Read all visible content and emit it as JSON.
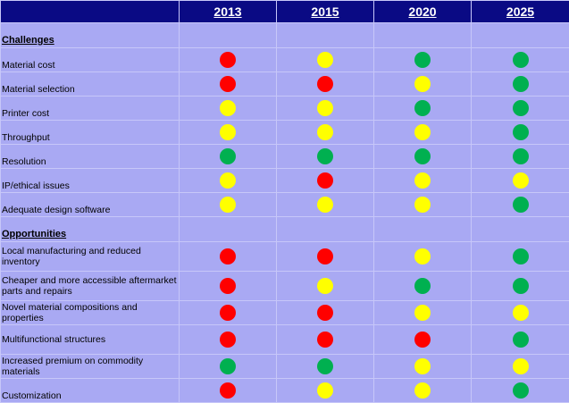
{
  "colors": {
    "red": "#ff0000",
    "yellow": "#ffff00",
    "green": "#00b050",
    "header_bg": "#0a0a84",
    "body_bg": "#a9a9f3"
  },
  "years": [
    "2013",
    "2015",
    "2020",
    "2025"
  ],
  "sections": [
    {
      "title": "Challenges",
      "rows": [
        {
          "label": "Material cost",
          "statuses": [
            "red",
            "yellow",
            "green",
            "green"
          ]
        },
        {
          "label": "Material selection",
          "statuses": [
            "red",
            "red",
            "yellow",
            "green"
          ]
        },
        {
          "label": "Printer cost",
          "statuses": [
            "yellow",
            "yellow",
            "green",
            "green"
          ]
        },
        {
          "label": "Throughput",
          "statuses": [
            "yellow",
            "yellow",
            "yellow",
            "green"
          ]
        },
        {
          "label": "Resolution",
          "statuses": [
            "green",
            "green",
            "green",
            "green"
          ]
        },
        {
          "label": "IP/ethical issues",
          "statuses": [
            "yellow",
            "red",
            "yellow",
            "yellow"
          ]
        },
        {
          "label": "Adequate design software",
          "statuses": [
            "yellow",
            "yellow",
            "yellow",
            "green"
          ]
        }
      ]
    },
    {
      "title": "Opportunities",
      "rows": [
        {
          "label": "Local manufacturing and reduced inventory",
          "statuses": [
            "red",
            "red",
            "yellow",
            "green"
          ]
        },
        {
          "label": "Cheaper and more accessible aftermarket parts and repairs",
          "statuses": [
            "red",
            "yellow",
            "green",
            "green"
          ]
        },
        {
          "label": "Novel material compositions and properties",
          "statuses": [
            "red",
            "red",
            "yellow",
            "yellow"
          ]
        },
        {
          "label": "Multifunctional structures",
          "statuses": [
            "red",
            "red",
            "red",
            "green"
          ]
        },
        {
          "label": "Increased premium on commodity materials",
          "statuses": [
            "green",
            "green",
            "yellow",
            "yellow"
          ]
        },
        {
          "label": "Customization",
          "statuses": [
            "red",
            "yellow",
            "yellow",
            "green"
          ]
        }
      ]
    }
  ]
}
